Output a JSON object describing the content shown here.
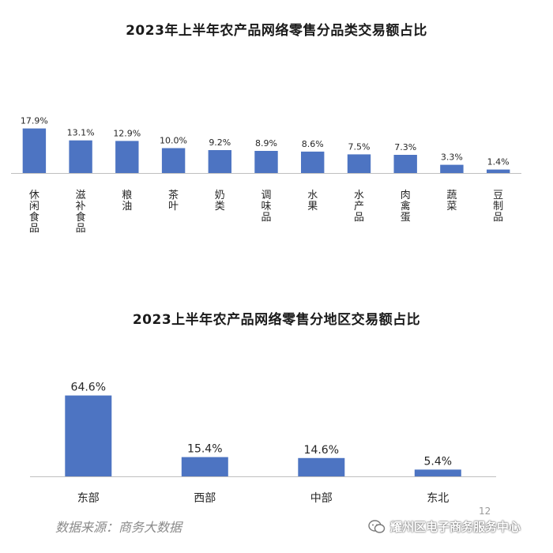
{
  "chart_data": [
    {
      "type": "bar",
      "title": "2023年上半年农产品网络零售分品类交易额占比",
      "categories": [
        "休闲食品",
        "滋补食品",
        "粮油",
        "茶叶",
        "奶类",
        "调味品",
        "水果",
        "水产品",
        "肉禽蛋",
        "蔬菜",
        "豆制品"
      ],
      "values": [
        17.9,
        13.1,
        12.9,
        10.0,
        9.2,
        8.9,
        8.6,
        7.5,
        7.3,
        3.3,
        1.4
      ],
      "value_labels": [
        "17.9%",
        "13.1%",
        "12.9%",
        "10.0%",
        "9.2%",
        "8.9%",
        "8.6%",
        "7.5%",
        "7.3%",
        "3.3%",
        "1.4%"
      ],
      "label_orientation": "vertical",
      "ylim": [
        0,
        20
      ],
      "grid": false,
      "bar_color": "#4d74c2"
    },
    {
      "type": "bar",
      "title": "2023上半年农产品网络零售分地区交易额占比",
      "categories": [
        "东部",
        "西部",
        "中部",
        "东北"
      ],
      "values": [
        64.6,
        15.4,
        14.6,
        5.4
      ],
      "value_labels": [
        "64.6%",
        "15.4%",
        "14.6%",
        "5.4%"
      ],
      "label_orientation": "horizontal",
      "ylim": [
        0,
        70
      ],
      "grid": false,
      "bar_color": "#4d74c2"
    }
  ],
  "footer": {
    "source": "数据来源：商务大数据",
    "page_number": "12",
    "watermark": "耀州区电子商务服务中心",
    "watermark_icon": "wechat-icon"
  }
}
